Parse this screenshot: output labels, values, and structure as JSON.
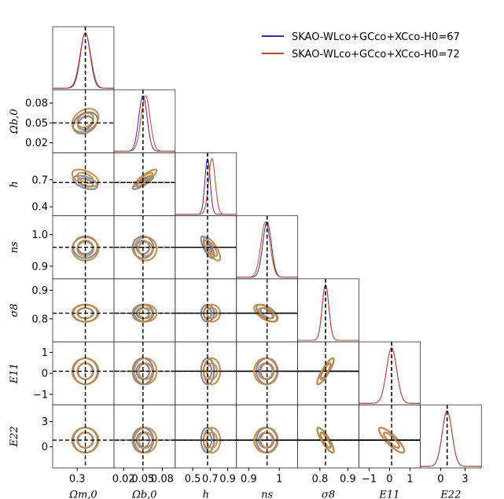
{
  "chart_data": {
    "type": "corner",
    "legend": {
      "placement": "top-right",
      "entries": [
        {
          "name": "SKAO-WLco+GCco+XCco-H0=67",
          "color": "#4b1fa8"
        },
        {
          "name": "SKAO-WLco+GCco+XCco-H0=72",
          "color": "#b5482a"
        }
      ]
    },
    "parameters": [
      {
        "key": "Om",
        "label": "Ωm,0",
        "fiducial": 0.32,
        "range": [
          0.24,
          0.39
        ],
        "ticks": [
          0.3
        ]
      },
      {
        "key": "Ob",
        "label": "Ωb,0",
        "fiducial": 0.05,
        "range": [
          0.005,
          0.1
        ],
        "ticks": [
          0.02,
          0.05,
          0.08
        ],
        "tick_labels": [
          "0.02",
          "0.05",
          "0.08"
        ]
      },
      {
        "key": "h",
        "label": "h",
        "fiducial": 0.67,
        "range": [
          0.3,
          1.0
        ],
        "ticks": [
          0.4,
          0.7
        ],
        "x_ticks": [
          0.5,
          0.7,
          0.9
        ]
      },
      {
        "key": "ns",
        "label": "ns",
        "fiducial": 0.96,
        "range": [
          0.86,
          1.06
        ],
        "ticks": [
          0.9,
          1.0
        ],
        "tick_labels": [
          "0.9",
          "1.0"
        ]
      },
      {
        "key": "s8",
        "label": "σ8",
        "fiducial": 0.82,
        "range": [
          0.72,
          0.94
        ],
        "ticks": [
          0.8,
          0.9
        ]
      },
      {
        "key": "E11",
        "label": "E11",
        "fiducial": 0.1,
        "range": [
          -1.5,
          1.5
        ],
        "ticks": [
          -1,
          0,
          1
        ]
      },
      {
        "key": "E22",
        "label": "E22",
        "fiducial": 0.8,
        "range": [
          -2.5,
          5.0
        ],
        "ticks": [
          0,
          3
        ],
        "x_ticks": [
          0,
          3
        ]
      }
    ],
    "series": [
      {
        "name": "SKAO-WLco+GCco+XCco-H0=67",
        "color": "#4b1fa8",
        "fill_color": "#7d7f8f",
        "means": {
          "Om": 0.32,
          "Ob": 0.05,
          "h": 0.67,
          "ns": 0.96,
          "s8": 0.82,
          "E11": 0.1,
          "E22": 0.8
        },
        "sigmas": {
          "Om": 0.012,
          "Ob": 0.0065,
          "h": 0.03,
          "ns": 0.014,
          "s8": 0.012,
          "E11": 0.25,
          "E22": 0.6
        },
        "correlations": {
          "Ob,Om": 0.3,
          "h,Om": -0.5,
          "h,Ob": 0.85,
          "ns,h": -0.75,
          "s8,ns": -0.6,
          "E11,s8": 0.88,
          "E22,s8": -0.85,
          "E22,E11": -0.85
        }
      },
      {
        "name": "SKAO-WLco+GCco+XCco-H0=72",
        "color": "#b5482a",
        "fill_color": "#c08a4a",
        "means": {
          "Om": 0.32,
          "Ob": 0.054,
          "h": 0.72,
          "ns": 0.955,
          "s8": 0.82,
          "E11": 0.1,
          "E22": 0.8
        },
        "sigmas": {
          "Om": 0.013,
          "Ob": 0.007,
          "h": 0.038,
          "ns": 0.015,
          "s8": 0.012,
          "E11": 0.25,
          "E22": 0.6
        },
        "correlations": {
          "Ob,Om": 0.3,
          "h,Om": -0.5,
          "h,Ob": 0.85,
          "ns,h": -0.75,
          "s8,ns": -0.6,
          "E11,s8": 0.88,
          "E22,s8": -0.85,
          "E22,E11": -0.85
        }
      }
    ],
    "contour_levels": [
      "1-sigma",
      "2-sigma"
    ],
    "fiducial_lines": "dashed black"
  }
}
